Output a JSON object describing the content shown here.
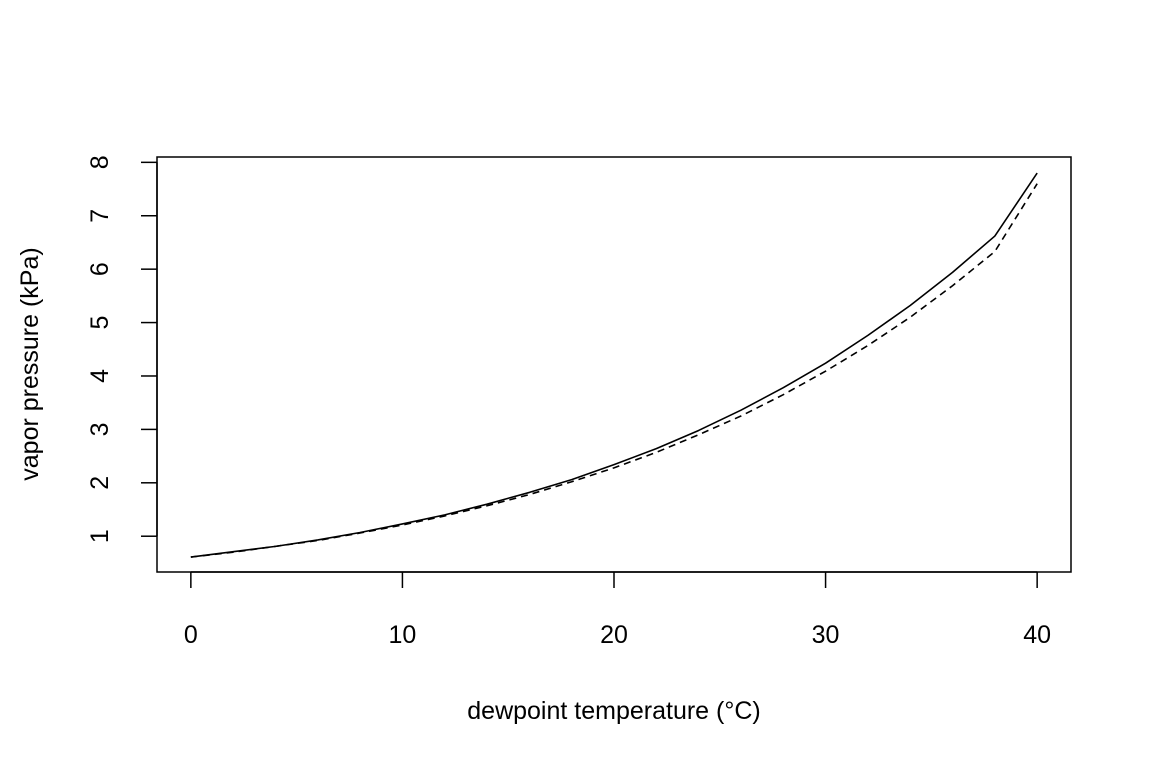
{
  "chart_data": {
    "type": "line",
    "title": "",
    "xlabel": "dewpoint temperature (°C)",
    "ylabel": "vapor pressure (kPa)",
    "xlim": [
      -1.6,
      41.6
    ],
    "ylim": [
      0.33,
      8.1
    ],
    "x_ticks": [
      0,
      10,
      20,
      30,
      40
    ],
    "x_tick_labels": [
      "0",
      "10",
      "20",
      "30",
      "40"
    ],
    "y_ticks": [
      1,
      2,
      3,
      4,
      5,
      6,
      7,
      8
    ],
    "y_tick_labels": [
      "1",
      "2",
      "3",
      "4",
      "5",
      "6",
      "7",
      "8"
    ],
    "grid": false,
    "legend": "none",
    "x": [
      0,
      2,
      4,
      6,
      8,
      10,
      12,
      14,
      16,
      18,
      20,
      22,
      24,
      26,
      28,
      30,
      32,
      34,
      36,
      38,
      40
    ],
    "series": [
      {
        "name": "solid",
        "line_style": "solid",
        "color": "#000000",
        "values": [
          0.61,
          0.71,
          0.81,
          0.93,
          1.07,
          1.23,
          1.4,
          1.6,
          1.82,
          2.06,
          2.34,
          2.64,
          2.98,
          3.36,
          3.78,
          4.24,
          4.76,
          5.32,
          5.94,
          6.62,
          7.8
        ]
      },
      {
        "name": "dashed",
        "line_style": "dashed",
        "color": "#000000",
        "values": [
          0.61,
          0.7,
          0.81,
          0.92,
          1.06,
          1.21,
          1.38,
          1.57,
          1.78,
          2.02,
          2.28,
          2.57,
          2.9,
          3.25,
          3.65,
          4.09,
          4.57,
          5.1,
          5.69,
          6.33,
          7.6
        ]
      }
    ]
  }
}
